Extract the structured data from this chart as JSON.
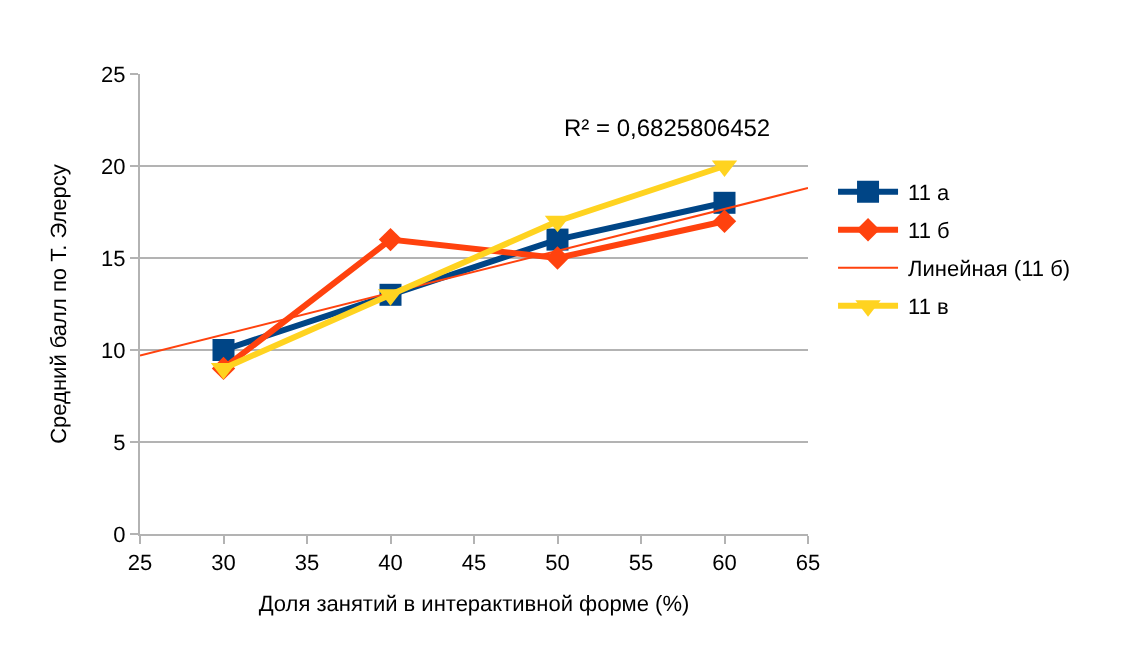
{
  "chart_data": {
    "type": "line",
    "xlabel": "Доля занятий в интерактивной форме (%)",
    "ylabel": "Средний балл по Т. Элерсу",
    "x": [
      30,
      40,
      50,
      60
    ],
    "series": [
      {
        "name": "11 а",
        "color": "#004586",
        "values": [
          10,
          13,
          16,
          18
        ],
        "marker": "square"
      },
      {
        "name": "11 б",
        "color": "#ff420e",
        "values": [
          9,
          16,
          15,
          17
        ],
        "marker": "diamond"
      },
      {
        "name": "Линейная (11 б)",
        "color": "#ff420e",
        "type": "line",
        "x": [
          25,
          65
        ],
        "values": [
          9.7,
          18.8
        ],
        "marker": "none"
      },
      {
        "name": "11 в",
        "color": "#ffd320",
        "values": [
          9,
          13,
          17,
          20
        ],
        "marker": "triangle"
      }
    ],
    "annotations": [
      "R² = 0,6825806452"
    ],
    "xlim": [
      25,
      65
    ],
    "xticks": [
      25,
      30,
      35,
      40,
      45,
      50,
      55,
      60,
      65
    ],
    "ylim": [
      0,
      25
    ],
    "yticks": [
      0,
      5,
      10,
      15,
      20,
      25
    ],
    "grid": "y",
    "legend": "right",
    "line_style": "solid"
  }
}
